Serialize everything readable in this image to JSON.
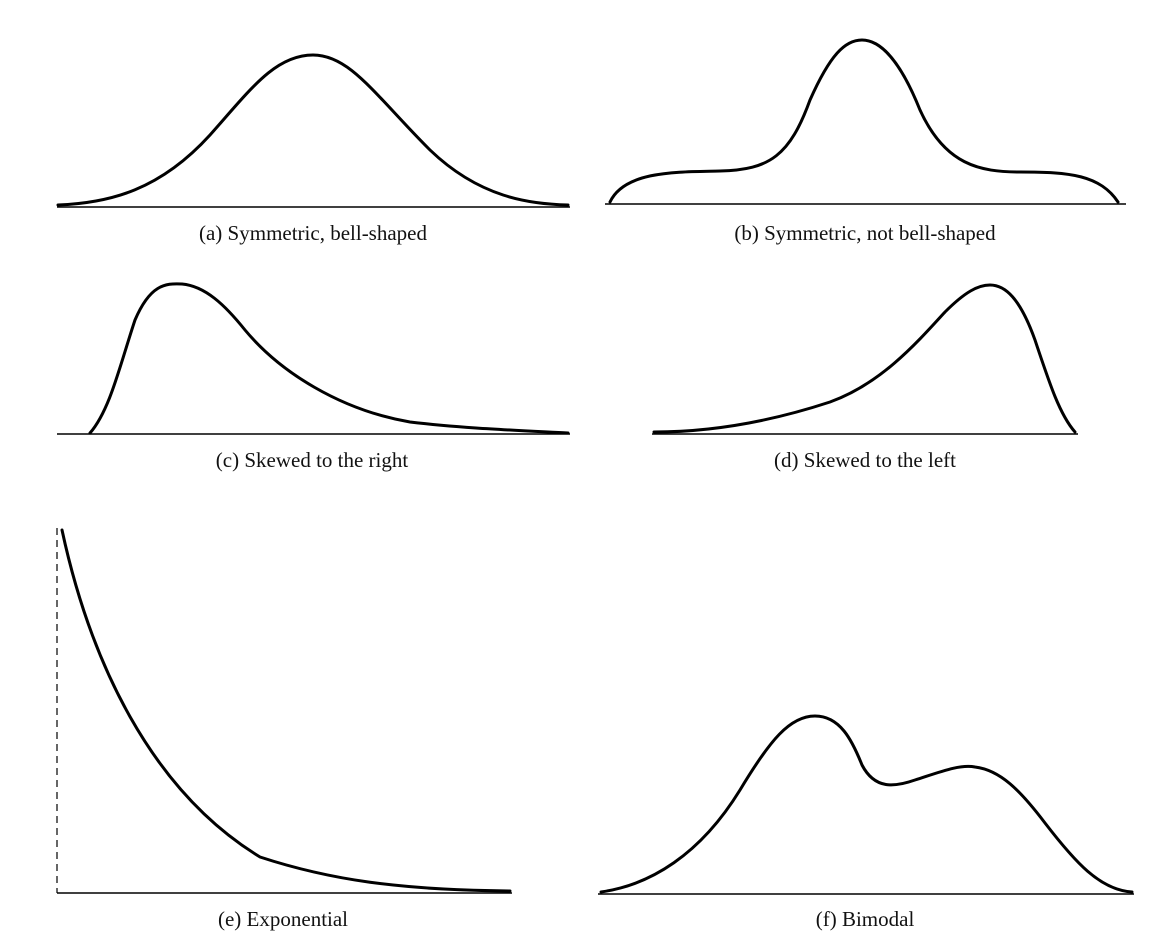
{
  "panels": [
    {
      "id": "a",
      "caption": "(a) Symmetric, bell-shaped"
    },
    {
      "id": "b",
      "caption": "(b) Symmetric, not bell-shaped"
    },
    {
      "id": "c",
      "caption": "(c) Skewed to the right"
    },
    {
      "id": "d",
      "caption": "(d) Skewed to the left"
    },
    {
      "id": "e",
      "caption": "(e) Exponential"
    },
    {
      "id": "f",
      "caption": "(f) Bimodal"
    }
  ],
  "colors": {
    "line": "#000000",
    "background": "#ffffff"
  }
}
